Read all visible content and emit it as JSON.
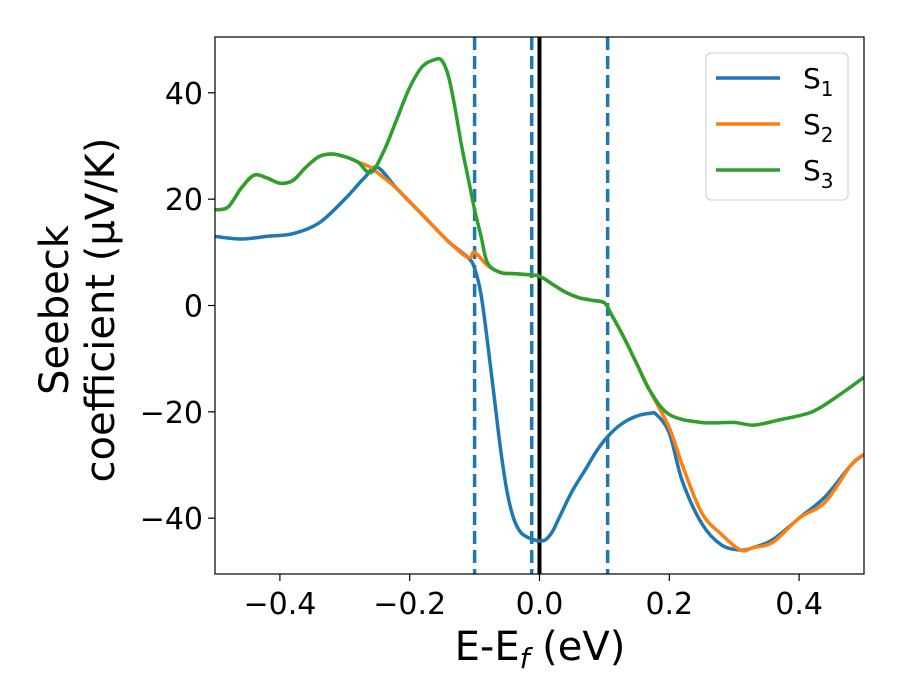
{
  "chart_data": {
    "type": "line",
    "xlabel": "E-E",
    "xlabel_sub": "f",
    "xlabel_unit": " (eV)",
    "ylabel_line1": "Seebeck",
    "ylabel_line2": "coefficient  (μV/K)",
    "xlim": [
      -0.5,
      0.5
    ],
    "ylim": [
      -50.5,
      50.5
    ],
    "x_ticks": [
      -0.4,
      -0.2,
      0.0,
      0.2,
      0.4
    ],
    "x_tick_labels": [
      "−0.4",
      "−0.2",
      "0.0",
      "0.2",
      "0.4"
    ],
    "y_ticks": [
      40,
      20,
      0,
      -20,
      -40
    ],
    "y_tick_labels": [
      "40",
      "20",
      "0",
      "−20",
      "−40"
    ],
    "legend_position": "top-right",
    "vlines": [
      {
        "x": -0.1,
        "style": "dashed",
        "color": "#1f77b4"
      },
      {
        "x": -0.012,
        "style": "dashed",
        "color": "#1f77b4"
      },
      {
        "x": 0.0,
        "style": "solid",
        "color": "#000000"
      },
      {
        "x": 0.105,
        "style": "dashed",
        "color": "#1f77b4"
      }
    ],
    "series": [
      {
        "name": "S",
        "sub": "1",
        "color": "#1f77b4",
        "x": [
          -0.5,
          -0.46,
          -0.42,
          -0.38,
          -0.34,
          -0.3,
          -0.27,
          -0.25,
          -0.22,
          -0.18,
          -0.14,
          -0.11,
          -0.1,
          -0.09,
          -0.08,
          -0.07,
          -0.06,
          -0.05,
          -0.04,
          -0.03,
          -0.02,
          -0.01,
          0.0,
          0.01,
          0.02,
          0.03,
          0.05,
          0.07,
          0.09,
          0.11,
          0.13,
          0.15,
          0.17,
          0.18,
          0.2,
          0.22,
          0.25,
          0.28,
          0.31,
          0.33,
          0.36,
          0.4,
          0.44,
          0.48,
          0.5
        ],
        "values": [
          13,
          12.5,
          13,
          13.5,
          15.5,
          20,
          24,
          26,
          22,
          17,
          12,
          9,
          7,
          2,
          -7,
          -17,
          -27,
          -35,
          -40,
          -42.5,
          -43.5,
          -44,
          -44.3,
          -44,
          -42.5,
          -40,
          -35,
          -31,
          -27,
          -24,
          -22,
          -20.8,
          -20.3,
          -20.5,
          -24,
          -33,
          -41,
          -45,
          -46,
          -45.5,
          -44,
          -40,
          -36,
          -30,
          -28
        ]
      },
      {
        "name": "S",
        "sub": "2",
        "color": "#ff7f0e",
        "x": [
          -0.5,
          -0.48,
          -0.46,
          -0.44,
          -0.42,
          -0.4,
          -0.38,
          -0.36,
          -0.34,
          -0.32,
          -0.3,
          -0.28,
          -0.26,
          -0.25,
          -0.22,
          -0.18,
          -0.14,
          -0.11,
          -0.1,
          -0.08,
          -0.06,
          -0.04,
          -0.02,
          0.0,
          0.02,
          0.04,
          0.06,
          0.08,
          0.1,
          0.11,
          0.13,
          0.15,
          0.17,
          0.2,
          0.22,
          0.25,
          0.28,
          0.31,
          0.33,
          0.36,
          0.4,
          0.44,
          0.48,
          0.5
        ],
        "values": [
          18,
          18.5,
          22,
          24.5,
          24,
          23,
          23.5,
          26,
          28,
          28.5,
          28,
          27,
          26,
          25,
          22,
          17,
          12,
          9,
          10,
          7.5,
          6.2,
          6,
          5.8,
          5.5,
          4,
          2.5,
          1.5,
          1,
          0.5,
          -1.5,
          -6,
          -11,
          -16,
          -23,
          -30,
          -39,
          -43,
          -46,
          -45.5,
          -44.5,
          -40,
          -37,
          -30,
          -28
        ]
      },
      {
        "name": "S",
        "sub": "3",
        "color": "#2ca02c",
        "x": [
          -0.5,
          -0.48,
          -0.46,
          -0.44,
          -0.42,
          -0.4,
          -0.38,
          -0.36,
          -0.34,
          -0.32,
          -0.3,
          -0.28,
          -0.26,
          -0.24,
          -0.22,
          -0.2,
          -0.18,
          -0.16,
          -0.15,
          -0.14,
          -0.13,
          -0.12,
          -0.11,
          -0.1,
          -0.09,
          -0.08,
          -0.06,
          -0.04,
          -0.02,
          0.0,
          0.02,
          0.04,
          0.06,
          0.08,
          0.1,
          0.11,
          0.13,
          0.15,
          0.17,
          0.2,
          0.25,
          0.3,
          0.33,
          0.37,
          0.42,
          0.46,
          0.5
        ],
        "values": [
          18,
          18.5,
          22,
          24.5,
          24,
          23,
          23.5,
          26,
          28,
          28.5,
          28,
          27,
          25,
          29,
          35,
          41,
          45,
          46.3,
          46,
          43,
          37,
          30,
          24,
          18,
          13,
          8,
          6.2,
          6,
          5.8,
          5.5,
          4,
          2.5,
          1.5,
          1,
          0.5,
          -1.5,
          -6,
          -11,
          -16,
          -20.5,
          -22,
          -22,
          -22.5,
          -21.5,
          -20,
          -17,
          -13.5
        ]
      }
    ]
  }
}
